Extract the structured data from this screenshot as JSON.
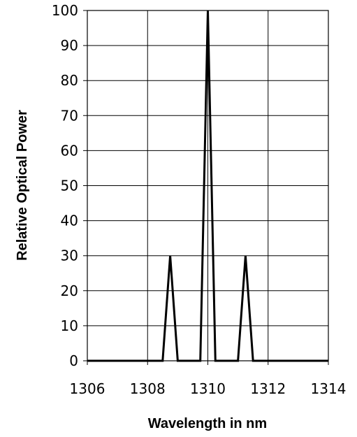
{
  "chart_data": {
    "type": "line",
    "title": "",
    "xlabel": "Wavelength in nm",
    "ylabel": "Relative Optical Power",
    "xlim": [
      1306,
      1314
    ],
    "ylim": [
      0,
      100
    ],
    "x_ticks": [
      1306,
      1308,
      1310,
      1312,
      1314
    ],
    "y_ticks": [
      0,
      10,
      20,
      30,
      40,
      50,
      60,
      70,
      80,
      90,
      100
    ],
    "grid": true,
    "series": [
      {
        "x": [
          1306,
          1308.5,
          1308.75,
          1309,
          1309.75,
          1310,
          1310.25,
          1311,
          1311.25,
          1311.5,
          1314
        ],
        "y": [
          0,
          0,
          30,
          0,
          0,
          100,
          0,
          0,
          30,
          0,
          0
        ]
      }
    ],
    "colors": {
      "line": "#000000",
      "grid": "#000000",
      "background": "#ffffff"
    }
  }
}
